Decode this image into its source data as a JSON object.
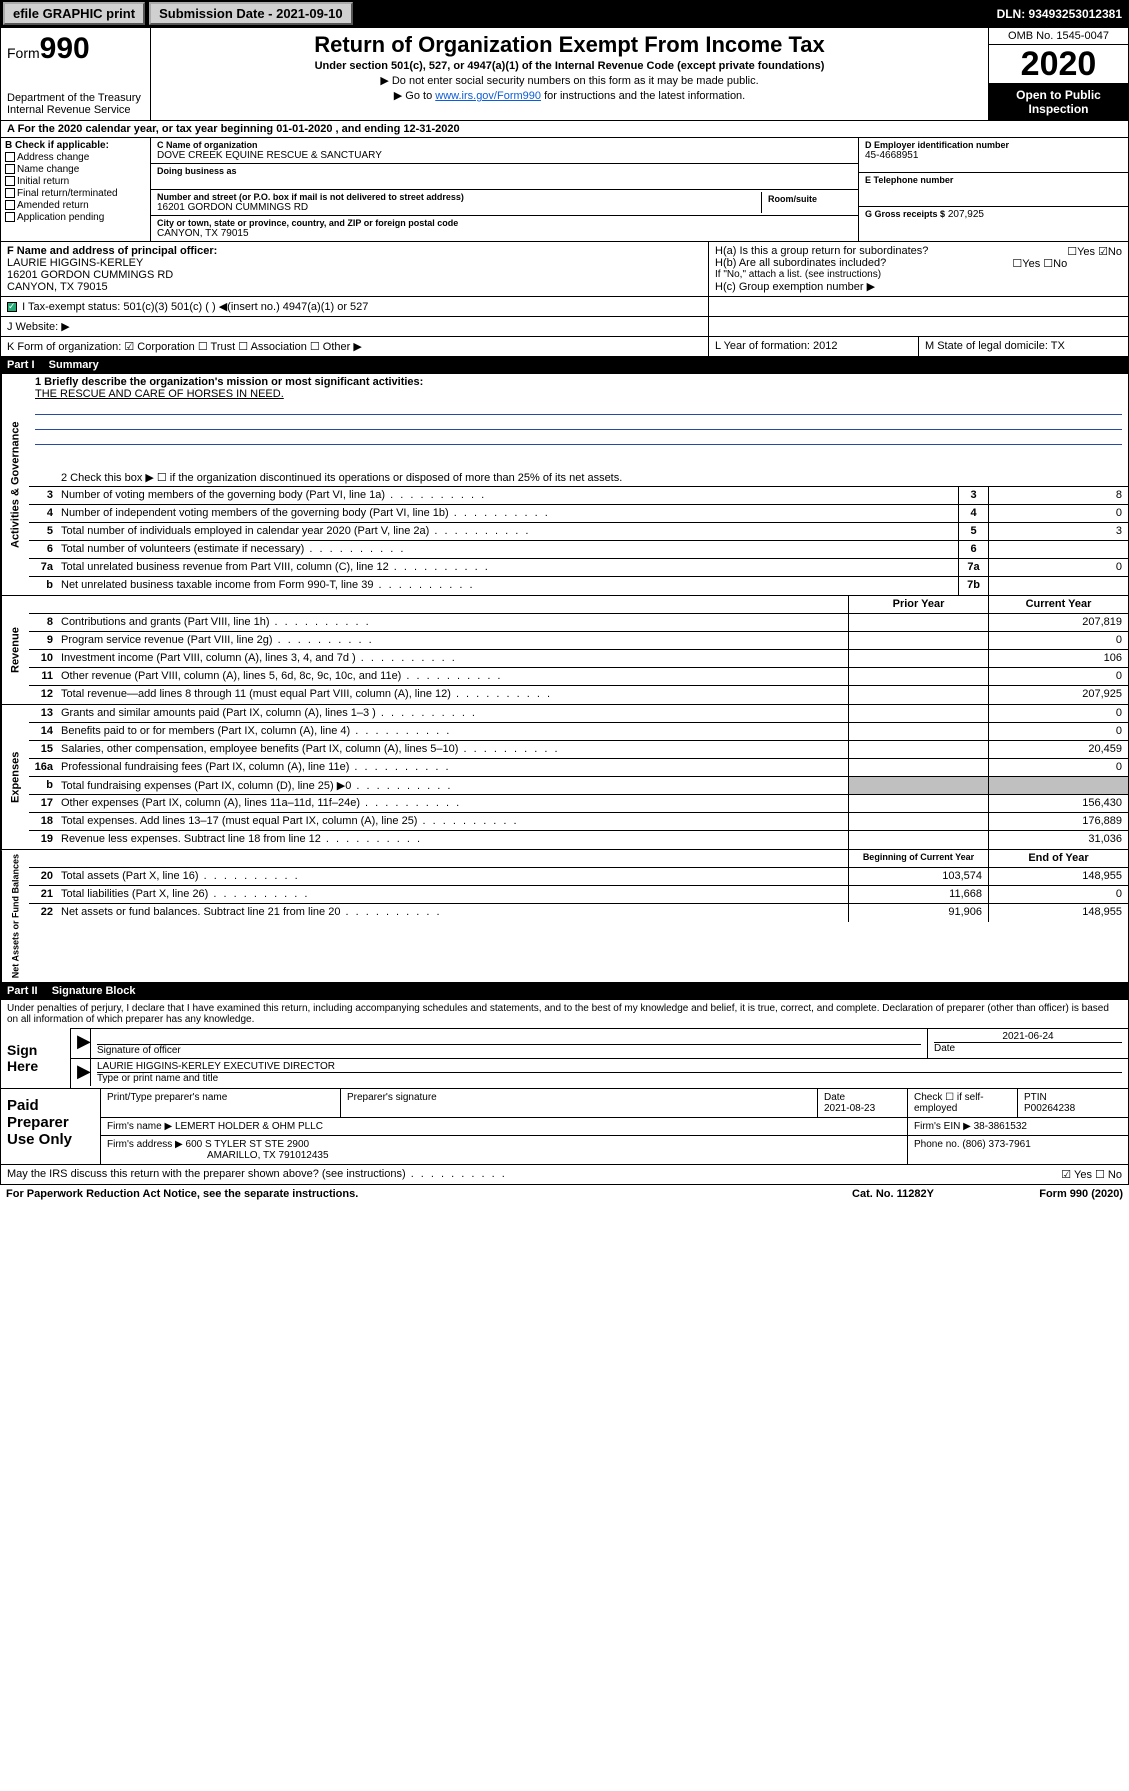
{
  "topbar": {
    "efile_label": "efile GRAPHIC print",
    "submission_label": "Submission Date - 2021-09-10",
    "dln": "DLN: 93493253012381"
  },
  "header": {
    "form_label": "Form",
    "form_num": "990",
    "dept": "Department of the Treasury Internal Revenue Service",
    "title": "Return of Organization Exempt From Income Tax",
    "subtitle": "Under section 501(c), 527, or 4947(a)(1) of the Internal Revenue Code (except private foundations)",
    "note1": "▶ Do not enter social security numbers on this form as it may be made public.",
    "note2_pre": "▶ Go to ",
    "note2_link": "www.irs.gov/Form990",
    "note2_post": " for instructions and the latest information.",
    "omb": "OMB No. 1545-0047",
    "year": "2020",
    "open": "Open to Public Inspection"
  },
  "lineA": "A For the 2020 calendar year, or tax year beginning 01-01-2020    , and ending 12-31-2020",
  "boxB": {
    "label": "B Check if applicable:",
    "items": [
      "Address change",
      "Name change",
      "Initial return",
      "Final return/terminated",
      "Amended return",
      "Application pending"
    ]
  },
  "boxC": {
    "name_lbl": "C Name of organization",
    "name": "DOVE CREEK EQUINE RESCUE & SANCTUARY",
    "dba_lbl": "Doing business as",
    "addr_lbl": "Number and street (or P.O. box if mail is not delivered to street address)",
    "room_lbl": "Room/suite",
    "addr": "16201 GORDON CUMMINGS RD",
    "city_lbl": "City or town, state or province, country, and ZIP or foreign postal code",
    "city": "CANYON, TX  79015"
  },
  "boxD": {
    "lbl": "D Employer identification number",
    "val": "45-4668951"
  },
  "boxE": {
    "lbl": "E Telephone number",
    "val": ""
  },
  "boxG": {
    "lbl": "G Gross receipts $",
    "val": "207,925"
  },
  "boxF": {
    "lbl": "F Name and address of principal officer:",
    "name": "LAURIE HIGGINS-KERLEY",
    "addr": "16201 GORDON CUMMINGS RD",
    "city": "CANYON, TX  79015"
  },
  "boxH": {
    "a": "H(a)  Is this a group return for subordinates?",
    "b": "H(b)  Are all subordinates included?",
    "note": "If \"No,\" attach a list. (see instructions)",
    "c": "H(c)  Group exemption number ▶"
  },
  "rowI": "I   Tax-exempt status:       501(c)(3)       501(c) (  ) ◀(insert no.)       4947(a)(1) or       527",
  "rowJ": "J   Website: ▶",
  "rowK": "K Form of organization:   ☑ Corporation   ☐ Trust   ☐ Association   ☐ Other ▶",
  "rowL": "L Year of formation: 2012",
  "rowM": "M State of legal domicile: TX",
  "part1": {
    "num": "Part I",
    "title": "Summary"
  },
  "summary": {
    "gov_label": "Activities & Governance",
    "rev_label": "Revenue",
    "exp_label": "Expenses",
    "nab_label": "Net Assets or Fund Balances",
    "mission_lbl": "1  Briefly describe the organization's mission or most significant activities:",
    "mission": "THE RESCUE AND CARE OF HORSES IN NEED.",
    "line2": "2   Check this box ▶ ☐  if the organization discontinued its operations or disposed of more than 25% of its net assets.",
    "rows_gov": [
      {
        "n": "3",
        "d": "Number of voting members of the governing body (Part VI, line 1a)",
        "box": "3",
        "val": "8"
      },
      {
        "n": "4",
        "d": "Number of independent voting members of the governing body (Part VI, line 1b)",
        "box": "4",
        "val": "0"
      },
      {
        "n": "5",
        "d": "Total number of individuals employed in calendar year 2020 (Part V, line 2a)",
        "box": "5",
        "val": "3"
      },
      {
        "n": "6",
        "d": "Total number of volunteers (estimate if necessary)",
        "box": "6",
        "val": ""
      },
      {
        "n": "7a",
        "d": "Total unrelated business revenue from Part VIII, column (C), line 12",
        "box": "7a",
        "val": "0"
      },
      {
        "n": "b",
        "d": "Net unrelated business taxable income from Form 990-T, line 39",
        "box": "7b",
        "val": ""
      }
    ],
    "hdr_prior": "Prior Year",
    "hdr_curr": "Current Year",
    "rows_rev": [
      {
        "n": "8",
        "d": "Contributions and grants (Part VIII, line 1h)",
        "p": "",
        "c": "207,819"
      },
      {
        "n": "9",
        "d": "Program service revenue (Part VIII, line 2g)",
        "p": "",
        "c": "0"
      },
      {
        "n": "10",
        "d": "Investment income (Part VIII, column (A), lines 3, 4, and 7d )",
        "p": "",
        "c": "106"
      },
      {
        "n": "11",
        "d": "Other revenue (Part VIII, column (A), lines 5, 6d, 8c, 9c, 10c, and 11e)",
        "p": "",
        "c": "0"
      },
      {
        "n": "12",
        "d": "Total revenue—add lines 8 through 11 (must equal Part VIII, column (A), line 12)",
        "p": "",
        "c": "207,925"
      }
    ],
    "rows_exp": [
      {
        "n": "13",
        "d": "Grants and similar amounts paid (Part IX, column (A), lines 1–3 )",
        "p": "",
        "c": "0"
      },
      {
        "n": "14",
        "d": "Benefits paid to or for members (Part IX, column (A), line 4)",
        "p": "",
        "c": "0"
      },
      {
        "n": "15",
        "d": "Salaries, other compensation, employee benefits (Part IX, column (A), lines 5–10)",
        "p": "",
        "c": "20,459"
      },
      {
        "n": "16a",
        "d": "Professional fundraising fees (Part IX, column (A), line 11e)",
        "p": "",
        "c": "0"
      },
      {
        "n": "b",
        "d": "Total fundraising expenses (Part IX, column (D), line 25) ▶0",
        "p": "shade",
        "c": "shade"
      },
      {
        "n": "17",
        "d": "Other expenses (Part IX, column (A), lines 11a–11d, 11f–24e)",
        "p": "",
        "c": "156,430"
      },
      {
        "n": "18",
        "d": "Total expenses. Add lines 13–17 (must equal Part IX, column (A), line 25)",
        "p": "",
        "c": "176,889"
      },
      {
        "n": "19",
        "d": "Revenue less expenses. Subtract line 18 from line 12",
        "p": "",
        "c": "31,036"
      }
    ],
    "hdr_boy": "Beginning of Current Year",
    "hdr_eoy": "End of Year",
    "rows_nab": [
      {
        "n": "20",
        "d": "Total assets (Part X, line 16)",
        "p": "103,574",
        "c": "148,955"
      },
      {
        "n": "21",
        "d": "Total liabilities (Part X, line 26)",
        "p": "11,668",
        "c": "0"
      },
      {
        "n": "22",
        "d": "Net assets or fund balances. Subtract line 21 from line 20",
        "p": "91,906",
        "c": "148,955"
      }
    ]
  },
  "part2": {
    "num": "Part II",
    "title": "Signature Block"
  },
  "sig": {
    "perjury": "Under penalties of perjury, I declare that I have examined this return, including accompanying schedules and statements, and to the best of my knowledge and belief, it is true, correct, and complete. Declaration of preparer (other than officer) is based on all information of which preparer has any knowledge.",
    "sign_here": "Sign Here",
    "sig_officer": "Signature of officer",
    "date1": "2021-06-24",
    "date_lbl": "Date",
    "name": "LAURIE HIGGINS-KERLEY  EXECUTIVE DIRECTOR",
    "name_lbl": "Type or print name and title"
  },
  "paid": {
    "label": "Paid Preparer Use Only",
    "h1": "Print/Type preparer's name",
    "h2": "Preparer's signature",
    "h3": "Date",
    "date": "2021-08-23",
    "h4": "Check ☐ if self-employed",
    "h5": "PTIN",
    "ptin": "P00264238",
    "firm_lbl": "Firm's name    ▶",
    "firm": "LEMERT HOLDER & OHM PLLC",
    "ein_lbl": "Firm's EIN ▶",
    "ein": "38-3861532",
    "addr_lbl": "Firm's address ▶",
    "addr": "600 S TYLER ST STE 2900",
    "addr2": "AMARILLO, TX  791012435",
    "phone_lbl": "Phone no.",
    "phone": "(806) 373-7961"
  },
  "footer": {
    "discuss": "May the IRS discuss this return with the preparer shown above? (see instructions)",
    "yes": "☑ Yes   ☐ No",
    "pra": "For Paperwork Reduction Act Notice, see the separate instructions.",
    "cat": "Cat. No. 11282Y",
    "form": "Form 990 (2020)"
  }
}
